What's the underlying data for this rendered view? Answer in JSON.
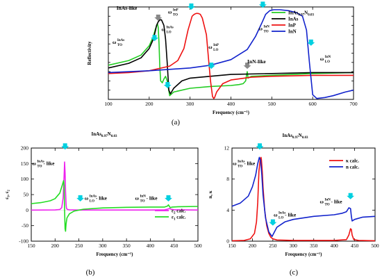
{
  "figure": {
    "panel_labels": [
      "(a)",
      "(b)",
      "(c)"
    ],
    "title_b": {
      "base": "InAs",
      "sub": "0.97",
      "base2": "N",
      "sub2": "0.03"
    },
    "title_c": {
      "base": "InAs",
      "sub": "0.97",
      "base2": "N",
      "sub2": "0.03"
    }
  },
  "chart_data": [
    {
      "type": "line",
      "panel": "(a)",
      "xlabel": "Frequency (cm⁻¹)",
      "ylabel": "Reflectivity",
      "xlim": [
        100,
        700
      ],
      "xticks": [
        100,
        200,
        300,
        400,
        500,
        600,
        700
      ],
      "ylim": [
        0,
        1
      ],
      "yticks_labeled": false,
      "legend_position": "top-right",
      "series": [
        {
          "name": "InAs0.97N0.03",
          "legend": {
            "base": "InAs",
            "sub": "0.97",
            "base2": "N",
            "sub2": "0.03"
          },
          "color": "#22cc22",
          "x": [
            100,
            150,
            180,
            200,
            210,
            215,
            220,
            222,
            224,
            226,
            228,
            232,
            236,
            240,
            244,
            250,
            260,
            300,
            350,
            400,
            420,
            430,
            436,
            438,
            440,
            442,
            445,
            450,
            500,
            600,
            700
          ],
          "y": [
            0.37,
            0.42,
            0.48,
            0.58,
            0.68,
            0.76,
            0.82,
            0.78,
            0.6,
            0.35,
            0.2,
            0.18,
            0.22,
            0.25,
            0.2,
            0.04,
            0.08,
            0.12,
            0.14,
            0.15,
            0.16,
            0.17,
            0.2,
            0.26,
            0.3,
            0.23,
            0.24,
            0.25,
            0.26,
            0.28,
            0.29
          ]
        },
        {
          "name": "InAs",
          "color": "#000000",
          "x": [
            100,
            150,
            180,
            200,
            210,
            215,
            218,
            222,
            226,
            230,
            236,
            240,
            244,
            248,
            252,
            260,
            280,
            300,
            400,
            500,
            600,
            700
          ],
          "y": [
            0.34,
            0.39,
            0.45,
            0.55,
            0.65,
            0.74,
            0.8,
            0.84,
            0.86,
            0.86,
            0.8,
            0.65,
            0.4,
            0.1,
            0.06,
            0.12,
            0.2,
            0.23,
            0.27,
            0.28,
            0.29,
            0.29
          ]
        },
        {
          "name": "InP",
          "color": "#ee1111",
          "x": [
            100,
            150,
            200,
            250,
            270,
            285,
            295,
            305,
            310,
            315,
            320,
            325,
            330,
            340,
            345,
            350,
            355,
            358,
            360,
            365,
            380,
            400,
            450,
            500,
            600,
            700
          ],
          "y": [
            0.28,
            0.29,
            0.31,
            0.36,
            0.42,
            0.55,
            0.75,
            0.9,
            0.92,
            0.93,
            0.93,
            0.92,
            0.88,
            0.7,
            0.45,
            0.2,
            0.03,
            0.01,
            0.02,
            0.08,
            0.17,
            0.21,
            0.24,
            0.25,
            0.26,
            0.26
          ]
        },
        {
          "name": "InN",
          "color": "#1122cc",
          "x": [
            100,
            200,
            300,
            350,
            400,
            440,
            460,
            475,
            485,
            495,
            505,
            520,
            540,
            560,
            575,
            585,
            592,
            600,
            610,
            630,
            650,
            680,
            700
          ],
          "y": [
            0.29,
            0.31,
            0.34,
            0.37,
            0.43,
            0.54,
            0.68,
            0.82,
            0.92,
            0.96,
            0.97,
            0.97,
            0.96,
            0.94,
            0.9,
            0.75,
            0.4,
            0.05,
            0.01,
            0.02,
            0.04,
            0.08,
            0.1
          ]
        }
      ],
      "annotations": [
        {
          "text": "InAs-like",
          "x": 120,
          "y": 0.97
        },
        {
          "text": "InN-like",
          "x": 440,
          "y": 0.39
        },
        {
          "base": "ω",
          "sub": "TO",
          "sup": "InAs",
          "x": 110,
          "y": 0.6
        },
        {
          "base": "ω",
          "sub": "LO",
          "sup": "InAs",
          "x": 230,
          "y": 0.74
        },
        {
          "base": "ω",
          "sub": "TO",
          "sup": "InP",
          "x": 246,
          "y": 0.93
        },
        {
          "base": "ω",
          "sub": "LO",
          "sup": "InP",
          "x": 345,
          "y": 0.55
        },
        {
          "base": "ω",
          "sub": "TO",
          "sup": "InN",
          "x": 468,
          "y": 0.75
        },
        {
          "base": "ω",
          "sub": "LO",
          "sup": "InN",
          "x": 618,
          "y": 0.42
        }
      ],
      "markers": [
        {
          "x": 222,
          "y": 0.85,
          "color": "#888888",
          "dir": "down"
        },
        {
          "x": 213,
          "y": 0.63,
          "color": "#00d0e0",
          "dir": "down"
        },
        {
          "x": 245,
          "y": 0.12,
          "color": "#00d0e0",
          "dir": "down"
        },
        {
          "x": 303,
          "y": 0.97,
          "color": "#00d0e0",
          "dir": "down"
        },
        {
          "x": 352,
          "y": 0.33,
          "color": "#00d0e0",
          "dir": "down"
        },
        {
          "x": 440,
          "y": 0.33,
          "color": "#888888",
          "dir": "down"
        },
        {
          "x": 478,
          "y": 0.99,
          "color": "#00d0e0",
          "dir": "down"
        },
        {
          "x": 596,
          "y": 0.58,
          "color": "#00d0e0",
          "dir": "down"
        }
      ]
    },
    {
      "type": "line",
      "panel": "(b)",
      "xlabel": "Frequency (cm⁻¹)",
      "ylabel": "ε₁, ε₂",
      "xlim": [
        150,
        500
      ],
      "xticks": [
        150,
        200,
        250,
        300,
        350,
        400,
        450,
        500
      ],
      "ylim": [
        -100,
        200
      ],
      "yticks": [
        -100,
        -50,
        0,
        50,
        100,
        150,
        200
      ],
      "legend_position": "right-middle",
      "series": [
        {
          "name": "ε₂ calc.",
          "legend": {
            "base": "ε",
            "sub": "2",
            "tail": "calc."
          },
          "color": "#ee22ee",
          "x": [
            150,
            200,
            210,
            214,
            217,
            219,
            220,
            221,
            222,
            223,
            224,
            226,
            230,
            250,
            300,
            350,
            400,
            430,
            436,
            440,
            444,
            450,
            500
          ],
          "y": [
            0,
            0.5,
            2,
            8,
            40,
            110,
            155,
            120,
            60,
            20,
            6,
            2,
            1,
            0.3,
            0.2,
            0.2,
            0.3,
            1,
            3,
            5,
            3,
            1,
            0.3
          ]
        },
        {
          "name": "ε₁ calc.",
          "legend": {
            "base": "ε",
            "sub": "1",
            "tail": "calc."
          },
          "color": "#22dd22",
          "x": [
            150,
            170,
            190,
            200,
            210,
            215,
            218,
            219,
            220,
            221,
            222,
            223,
            225,
            230,
            240,
            250,
            260,
            300,
            350,
            400,
            430,
            436,
            438,
            440,
            442,
            446,
            460,
            500
          ],
          "y": [
            21,
            24,
            30,
            37,
            55,
            80,
            95,
            80,
            0,
            -60,
            -68,
            -45,
            -25,
            -12,
            -3,
            0,
            3,
            7,
            9,
            10,
            10,
            13,
            17,
            12,
            8,
            10,
            11,
            12
          ]
        }
      ],
      "annotations": [
        {
          "base": "ω",
          "sub": "TO",
          "sup": "InAs",
          "tail": " - like",
          "x": 152,
          "y": 145
        },
        {
          "base": "ω",
          "sub": "LO",
          "sup": "InAs",
          "tail": " - like",
          "x": 262,
          "y": 33
        },
        {
          "base": "ω",
          "sub": "TO",
          "sup": "InN",
          "tail": " - like",
          "x": 368,
          "y": 33
        }
      ],
      "markers": [
        {
          "x": 221,
          "y": 195,
          "color": "#00d0e0",
          "dir": "down"
        },
        {
          "x": 253,
          "y": 28,
          "color": "#00d0e0",
          "dir": "down"
        },
        {
          "x": 438,
          "y": 28,
          "color": "#00d0e0",
          "dir": "down"
        }
      ]
    },
    {
      "type": "line",
      "panel": "(c)",
      "xlabel": "Frequency (cm⁻¹)",
      "ylabel": "n, κ",
      "xlim": [
        150,
        500
      ],
      "xticks": [
        150,
        200,
        250,
        300,
        350,
        400,
        450,
        500
      ],
      "ylim": [
        0,
        12
      ],
      "yticks": [
        0,
        4,
        8,
        12
      ],
      "legend_position": "top-right",
      "series": [
        {
          "name": "κ calc.",
          "legend": {
            "base": "κ",
            "tail": "calc."
          },
          "color": "#ee1111",
          "x": [
            150,
            180,
            195,
            205,
            210,
            213,
            216,
            219,
            221,
            222,
            224,
            226,
            230,
            235,
            240,
            245,
            250,
            260,
            300,
            400,
            430,
            436,
            440,
            442,
            444,
            448,
            460,
            500
          ],
          "y": [
            0.05,
            0.1,
            0.3,
            1,
            2.5,
            5,
            9,
            10.5,
            10.8,
            10.5,
            9,
            7,
            4,
            2,
            1,
            0.5,
            0.3,
            0.15,
            0.1,
            0.1,
            0.2,
            0.8,
            1.6,
            1.5,
            0.8,
            0.2,
            0.1,
            0.05
          ]
        },
        {
          "name": "n calc.",
          "legend": {
            "base": "n",
            "tail": "calc."
          },
          "color": "#1122cc",
          "x": [
            150,
            170,
            190,
            200,
            208,
            213,
            217,
            220,
            223,
            226,
            232,
            240,
            248,
            253,
            260,
            280,
            300,
            350,
            400,
            420,
            430,
            436,
            440,
            442,
            444,
            450,
            470,
            500
          ],
          "y": [
            4.5,
            4.9,
            5.8,
            7,
            8.5,
            10,
            10.8,
            10.4,
            8.5,
            6,
            3,
            1.2,
            0.6,
            1.1,
            1.8,
            2.5,
            2.8,
            3.2,
            3.4,
            3.6,
            3.8,
            4.3,
            4.2,
            3.2,
            2.6,
            2.8,
            3.1,
            3.2
          ]
        }
      ],
      "annotations": [
        {
          "base": "ω",
          "sub": "TO",
          "sup": "InAs",
          "tail": " - like",
          "x": 152,
          "y": 9.8
        },
        {
          "base": "ω",
          "sub": "LO",
          "sup": "InAs",
          "tail": " - like",
          "x": 252,
          "y": 3.2
        },
        {
          "base": "ω",
          "sub": "TO",
          "sup": "InN",
          "tail": " - like",
          "x": 365,
          "y": 4.9
        }
      ],
      "markers": [
        {
          "x": 218,
          "y": 11.8,
          "color": "#00d0e0",
          "dir": "down"
        },
        {
          "x": 250,
          "y": 2.0,
          "color": "#00d0e0",
          "dir": "down"
        },
        {
          "x": 440,
          "y": 5.4,
          "color": "#00d0e0",
          "dir": "down"
        }
      ]
    }
  ]
}
